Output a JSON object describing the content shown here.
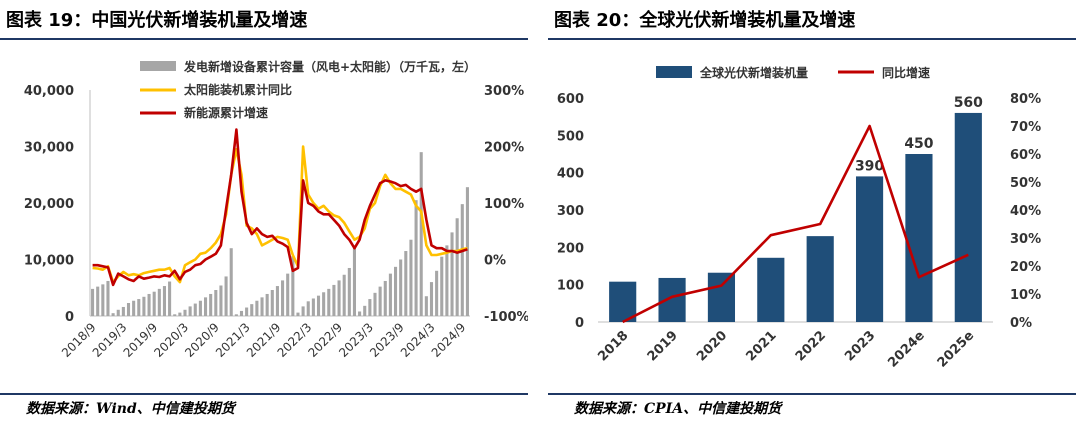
{
  "left": {
    "title": "图表 19：中国光伏新增装机量及增速",
    "source": "数据来源：Wind、中信建投期货",
    "colors": {
      "bars": "#a6a6a6",
      "solar_line": "#ffc000",
      "new_energy_line": "#c00000",
      "rule": "#1f3864"
    },
    "chart_data": {
      "type": "bar",
      "legend_position": "top-right",
      "y_ticks": [
        "40,000",
        "30,000",
        "20,000",
        "10,000",
        "0"
      ],
      "y2_ticks": [
        "300%",
        "200%",
        "100%",
        "0%",
        "-100%"
      ],
      "ylim": [
        0,
        40000
      ],
      "y2lim": [
        -100,
        300
      ],
      "x_tick_labels": [
        "2018/9",
        "2019/3",
        "2019/9",
        "2020/3",
        "2020/9",
        "2021/3",
        "2021/9",
        "2022/3",
        "2022/9",
        "2023/3",
        "2023/9",
        "2024/3",
        "2024/9"
      ],
      "x": [
        "2018-09",
        "2018-10",
        "2018-11",
        "2018-12",
        "2019-01",
        "2019-02",
        "2019-03",
        "2019-04",
        "2019-05",
        "2019-06",
        "2019-07",
        "2019-08",
        "2019-09",
        "2019-10",
        "2019-11",
        "2019-12",
        "2020-01",
        "2020-02",
        "2020-03",
        "2020-04",
        "2020-05",
        "2020-06",
        "2020-07",
        "2020-08",
        "2020-09",
        "2020-10",
        "2020-11",
        "2020-12",
        "2021-01",
        "2021-02",
        "2021-03",
        "2021-04",
        "2021-05",
        "2021-06",
        "2021-07",
        "2021-08",
        "2021-09",
        "2021-10",
        "2021-11",
        "2021-12",
        "2022-01",
        "2022-02",
        "2022-03",
        "2022-04",
        "2022-05",
        "2022-06",
        "2022-07",
        "2022-08",
        "2022-09",
        "2022-10",
        "2022-11",
        "2022-12",
        "2023-01",
        "2023-02",
        "2023-03",
        "2023-04",
        "2023-05",
        "2023-06",
        "2023-07",
        "2023-08",
        "2023-09",
        "2023-10",
        "2023-11",
        "2023-12",
        "2024-01",
        "2024-02",
        "2024-03",
        "2024-04",
        "2024-05",
        "2024-06",
        "2024-07",
        "2024-08",
        "2024-09",
        "2024-10"
      ],
      "series": [
        {
          "name": "发电新增设备累计容量（风电+太阳能）（万千瓦，左）",
          "kind": "bar",
          "axis": "left",
          "values": [
            4800,
            5200,
            5600,
            6200,
            500,
            1100,
            1600,
            2300,
            2700,
            3000,
            3400,
            3900,
            4300,
            4800,
            5300,
            6100,
            300,
            600,
            1100,
            1700,
            2200,
            2700,
            3300,
            3900,
            4600,
            5400,
            7000,
            12000,
            300,
            900,
            1500,
            2100,
            2700,
            3300,
            3900,
            4600,
            5300,
            6300,
            7500,
            10600,
            600,
            1700,
            2600,
            3100,
            3600,
            4200,
            4800,
            5500,
            6300,
            7300,
            8500,
            12000,
            800,
            1800,
            3000,
            4100,
            5200,
            6200,
            7500,
            8700,
            10000,
            11500,
            13500,
            20500,
            29000,
            3500,
            6000,
            8000,
            10500,
            12500,
            14800,
            17300,
            19800,
            22800
          ]
        },
        {
          "name": "太阳能装机累计同比",
          "kind": "line",
          "axis": "right",
          "values": [
            -15,
            -16,
            -18,
            -12,
            -40,
            -30,
            -22,
            -28,
            -26,
            -28,
            -24,
            -22,
            -20,
            -18,
            -18,
            -15,
            -30,
            -40,
            -10,
            -5,
            0,
            10,
            12,
            20,
            30,
            45,
            80,
            150,
            195,
            150,
            60,
            55,
            45,
            25,
            30,
            35,
            40,
            38,
            35,
            8,
            -12,
            200,
            115,
            100,
            90,
            95,
            85,
            78,
            75,
            65,
            50,
            35,
            40,
            55,
            90,
            100,
            130,
            150,
            135,
            125,
            125,
            120,
            115,
            95,
            85,
            25,
            8,
            8,
            10,
            12,
            15,
            15,
            18,
            20
          ]
        },
        {
          "name": "新能源累计增速",
          "kind": "line",
          "axis": "right",
          "values": [
            -10,
            -10,
            -12,
            -14,
            -45,
            -25,
            -30,
            -35,
            -38,
            -30,
            -34,
            -32,
            -30,
            -31,
            -28,
            -30,
            -20,
            -35,
            -22,
            -18,
            -10,
            -8,
            0,
            5,
            10,
            25,
            90,
            150,
            230,
            120,
            65,
            45,
            55,
            45,
            40,
            42,
            32,
            28,
            22,
            -20,
            -15,
            140,
            100,
            95,
            85,
            80,
            80,
            70,
            60,
            45,
            35,
            20,
            35,
            70,
            95,
            115,
            135,
            140,
            138,
            135,
            130,
            132,
            125,
            120,
            125,
            70,
            25,
            20,
            20,
            15,
            15,
            12,
            15,
            18
          ]
        }
      ]
    }
  },
  "right": {
    "title": "图表 20：全球光伏新增装机量及增速",
    "source": "数据来源：CPIA、中信建投期货",
    "colors": {
      "bars": "#1f4e79",
      "line": "#c00000",
      "rule": "#1f3864"
    },
    "chart_data": {
      "type": "bar",
      "legend_position": "top",
      "categories": [
        "2018",
        "2019",
        "2020",
        "2021",
        "2022",
        "2023",
        "2024e",
        "2025e"
      ],
      "y_ticks": [
        "600",
        "500",
        "400",
        "300",
        "200",
        "100",
        "0"
      ],
      "y2_ticks": [
        "80%",
        "70%",
        "60%",
        "50%",
        "40%",
        "30%",
        "20%",
        "10%",
        "0%"
      ],
      "ylim": [
        0,
        600
      ],
      "y2lim": [
        0,
        80
      ],
      "series": [
        {
          "name": "全球光伏新增装机量",
          "kind": "bar",
          "axis": "left",
          "values": [
            108,
            118,
            132,
            172,
            230,
            390,
            450,
            560
          ],
          "data_labels": [
            "",
            "",
            "",
            "",
            "",
            "390",
            "450",
            "560"
          ]
        },
        {
          "name": "同比增速",
          "kind": "line",
          "axis": "right",
          "values": [
            0,
            9,
            13,
            31,
            35,
            70,
            16,
            24
          ]
        }
      ]
    }
  }
}
